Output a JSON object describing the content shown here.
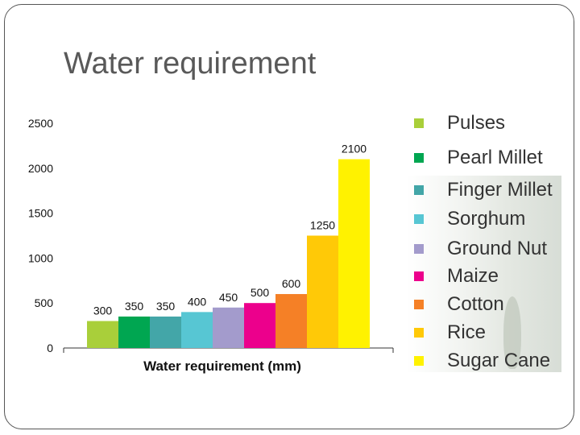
{
  "slide": {
    "title": "Water requirement"
  },
  "chart_data": {
    "type": "bar",
    "title": "",
    "xlabel": "Water requirement (mm)",
    "ylabel": "",
    "ylim": [
      0,
      2500
    ],
    "yticks": [
      0,
      500,
      1000,
      1500,
      2000,
      2500
    ],
    "grid": false,
    "legend_position": "right",
    "categories": [
      "Pulses",
      "Pearl Millet",
      "Finger Millet",
      "Sorghum",
      "Ground Nut",
      "Maize",
      "Cotton",
      "Rice",
      "Sugar Cane"
    ],
    "values": [
      300,
      350,
      350,
      400,
      450,
      500,
      600,
      1250,
      2100
    ],
    "colors": [
      "#a9cf3a",
      "#00a651",
      "#43a6a8",
      "#57c6d3",
      "#a39bcc",
      "#ec008c",
      "#f58026",
      "#ffc907",
      "#fff200"
    ]
  }
}
